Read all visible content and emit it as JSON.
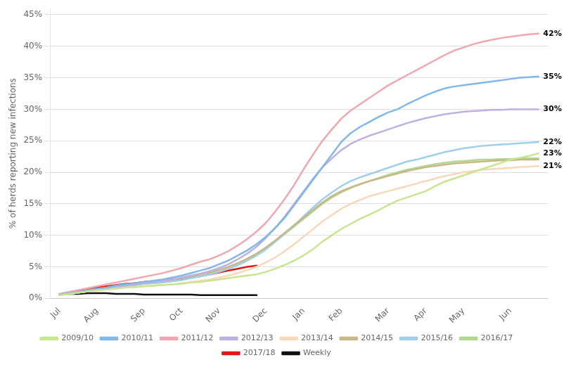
{
  "chart_data": {
    "type": "line",
    "y_label": "% of herds reporting new infections",
    "xlim": [
      -1,
      52
    ],
    "xticks": [
      {
        "value": 0,
        "label": "Jul"
      },
      {
        "value": 4,
        "label": "Aug"
      },
      {
        "value": 9,
        "label": "Sep"
      },
      {
        "value": 13,
        "label": "Oct"
      },
      {
        "value": 17,
        "label": "Nov"
      },
      {
        "value": 22,
        "label": "Dec"
      },
      {
        "value": 26,
        "label": "Jan"
      },
      {
        "value": 30,
        "label": "Feb"
      },
      {
        "value": 35,
        "label": "Mar"
      },
      {
        "value": 39,
        "label": "Apr"
      },
      {
        "value": 43,
        "label": "May"
      },
      {
        "value": 48,
        "label": "Jun"
      }
    ],
    "ylim": [
      0,
      0.46
    ],
    "yticks": [
      {
        "value": 0.0,
        "label": "0%"
      },
      {
        "value": 0.05,
        "label": "5%"
      },
      {
        "value": 0.1,
        "label": "10%"
      },
      {
        "value": 0.15,
        "label": "15%"
      },
      {
        "value": 0.2,
        "label": "20%"
      },
      {
        "value": 0.25,
        "label": "25%"
      },
      {
        "value": 0.3,
        "label": "30%"
      },
      {
        "value": 0.35,
        "label": "35%"
      },
      {
        "value": 0.4,
        "label": "40%"
      },
      {
        "value": 0.45,
        "label": "45%"
      }
    ],
    "grid": "y",
    "legend": "bottom",
    "annotations": [
      {
        "text": "42%",
        "x": 51.5,
        "y": 0.42
      },
      {
        "text": "35%",
        "x": 51.5,
        "y": 0.352
      },
      {
        "text": "30%",
        "x": 51.5,
        "y": 0.3
      },
      {
        "text": "23%",
        "x": 51.5,
        "y": 0.23
      },
      {
        "text": "22%",
        "x": 51.5,
        "y": 0.248
      },
      {
        "text": "21%",
        "x": 51.5,
        "y": 0.21
      }
    ],
    "series": [
      {
        "name": "2009/10",
        "color": "#c8e690",
        "x": [
          0,
          1,
          2,
          3,
          4,
          5,
          6,
          7,
          8,
          9,
          10,
          11,
          12,
          13,
          14,
          15,
          16,
          17,
          18,
          19,
          20,
          21,
          22,
          23,
          24,
          25,
          26,
          27,
          28,
          29,
          30,
          31,
          32,
          33,
          34,
          35,
          36,
          37,
          38,
          39,
          40,
          41,
          42,
          43,
          44,
          45,
          46,
          47,
          48,
          49,
          50,
          51
        ],
        "values": [
          0.005,
          0.007,
          0.009,
          0.011,
          0.013,
          0.014,
          0.016,
          0.017,
          0.018,
          0.019,
          0.02,
          0.021,
          0.022,
          0.023,
          0.025,
          0.026,
          0.028,
          0.03,
          0.032,
          0.034,
          0.036,
          0.038,
          0.042,
          0.047,
          0.053,
          0.06,
          0.068,
          0.078,
          0.09,
          0.1,
          0.11,
          0.118,
          0.126,
          0.133,
          0.14,
          0.148,
          0.155,
          0.16,
          0.165,
          0.17,
          0.178,
          0.185,
          0.19,
          0.195,
          0.2,
          0.205,
          0.21,
          0.215,
          0.22,
          0.223,
          0.226,
          0.23
        ]
      },
      {
        "name": "2010/11",
        "color": "#80b8e8",
        "x": [
          0,
          1,
          2,
          3,
          4,
          5,
          6,
          7,
          8,
          9,
          10,
          11,
          12,
          13,
          14,
          15,
          16,
          17,
          18,
          19,
          20,
          21,
          22,
          23,
          24,
          25,
          26,
          27,
          28,
          29,
          30,
          31,
          32,
          33,
          34,
          35,
          36,
          37,
          38,
          39,
          40,
          41,
          42,
          43,
          44,
          45,
          46,
          47,
          48,
          49,
          50,
          51
        ],
        "values": [
          0.006,
          0.008,
          0.01,
          0.013,
          0.015,
          0.017,
          0.02,
          0.022,
          0.024,
          0.026,
          0.028,
          0.03,
          0.033,
          0.036,
          0.04,
          0.044,
          0.048,
          0.054,
          0.06,
          0.068,
          0.076,
          0.086,
          0.098,
          0.112,
          0.128,
          0.148,
          0.168,
          0.188,
          0.208,
          0.228,
          0.248,
          0.262,
          0.272,
          0.28,
          0.288,
          0.295,
          0.3,
          0.308,
          0.315,
          0.322,
          0.328,
          0.333,
          0.336,
          0.338,
          0.34,
          0.342,
          0.344,
          0.346,
          0.348,
          0.35,
          0.351,
          0.352
        ]
      },
      {
        "name": "2011/12",
        "color": "#f0a8b0",
        "x": [
          0,
          1,
          2,
          3,
          4,
          5,
          6,
          7,
          8,
          9,
          10,
          11,
          12,
          13,
          14,
          15,
          16,
          17,
          18,
          19,
          20,
          21,
          22,
          23,
          24,
          25,
          26,
          27,
          28,
          29,
          30,
          31,
          32,
          33,
          34,
          35,
          36,
          37,
          38,
          39,
          40,
          41,
          42,
          43,
          44,
          45,
          46,
          47,
          48,
          49,
          50,
          51
        ],
        "values": [
          0.007,
          0.01,
          0.013,
          0.016,
          0.019,
          0.022,
          0.025,
          0.028,
          0.031,
          0.034,
          0.037,
          0.04,
          0.044,
          0.048,
          0.053,
          0.058,
          0.062,
          0.068,
          0.075,
          0.084,
          0.094,
          0.106,
          0.12,
          0.138,
          0.158,
          0.18,
          0.205,
          0.228,
          0.25,
          0.268,
          0.285,
          0.298,
          0.308,
          0.318,
          0.328,
          0.338,
          0.346,
          0.354,
          0.362,
          0.37,
          0.378,
          0.386,
          0.393,
          0.398,
          0.403,
          0.407,
          0.41,
          0.413,
          0.415,
          0.417,
          0.419,
          0.42
        ]
      },
      {
        "name": "2012/13",
        "color": "#c0b0e0",
        "x": [
          0,
          1,
          2,
          3,
          4,
          5,
          6,
          7,
          8,
          9,
          10,
          11,
          12,
          13,
          14,
          15,
          16,
          17,
          18,
          19,
          20,
          21,
          22,
          23,
          24,
          25,
          26,
          27,
          28,
          29,
          30,
          31,
          32,
          33,
          34,
          35,
          36,
          37,
          38,
          39,
          40,
          41,
          42,
          43,
          44,
          45,
          46,
          47,
          48,
          49,
          50,
          51
        ],
        "values": [
          0.006,
          0.008,
          0.01,
          0.012,
          0.014,
          0.016,
          0.018,
          0.02,
          0.022,
          0.024,
          0.026,
          0.028,
          0.03,
          0.033,
          0.036,
          0.039,
          0.043,
          0.048,
          0.054,
          0.062,
          0.071,
          0.082,
          0.096,
          0.112,
          0.13,
          0.15,
          0.17,
          0.19,
          0.208,
          0.222,
          0.235,
          0.245,
          0.252,
          0.258,
          0.263,
          0.268,
          0.273,
          0.278,
          0.282,
          0.286,
          0.289,
          0.292,
          0.294,
          0.296,
          0.297,
          0.298,
          0.299,
          0.299,
          0.3,
          0.3,
          0.3,
          0.3
        ]
      },
      {
        "name": "2013/14",
        "color": "#f8d8b8",
        "x": [
          0,
          1,
          2,
          3,
          4,
          5,
          6,
          7,
          8,
          9,
          10,
          11,
          12,
          13,
          14,
          15,
          16,
          17,
          18,
          19,
          20,
          21,
          22,
          23,
          24,
          25,
          26,
          27,
          28,
          29,
          30,
          31,
          32,
          33,
          34,
          35,
          36,
          37,
          38,
          39,
          40,
          41,
          42,
          43,
          44,
          45,
          46,
          47,
          48,
          49,
          50,
          51
        ],
        "values": [
          0.005,
          0.007,
          0.009,
          0.011,
          0.012,
          0.014,
          0.015,
          0.017,
          0.018,
          0.019,
          0.02,
          0.021,
          0.022,
          0.024,
          0.026,
          0.028,
          0.03,
          0.033,
          0.036,
          0.04,
          0.045,
          0.05,
          0.057,
          0.065,
          0.075,
          0.086,
          0.098,
          0.11,
          0.122,
          0.132,
          0.142,
          0.15,
          0.156,
          0.162,
          0.166,
          0.17,
          0.174,
          0.178,
          0.182,
          0.186,
          0.19,
          0.194,
          0.197,
          0.2,
          0.202,
          0.204,
          0.205,
          0.206,
          0.207,
          0.208,
          0.209,
          0.21
        ]
      },
      {
        "name": "2014/15",
        "color": "#c8b888",
        "x": [
          0,
          1,
          2,
          3,
          4,
          5,
          6,
          7,
          8,
          9,
          10,
          11,
          12,
          13,
          14,
          15,
          16,
          17,
          18,
          19,
          20,
          21,
          22,
          23,
          24,
          25,
          26,
          27,
          28,
          29,
          30,
          31,
          32,
          33,
          34,
          35,
          36,
          37,
          38,
          39,
          40,
          41,
          42,
          43,
          44,
          45,
          46,
          47,
          48,
          49,
          50,
          51
        ],
        "values": [
          0.006,
          0.008,
          0.01,
          0.012,
          0.014,
          0.016,
          0.018,
          0.02,
          0.022,
          0.024,
          0.026,
          0.028,
          0.03,
          0.032,
          0.035,
          0.038,
          0.041,
          0.045,
          0.05,
          0.056,
          0.063,
          0.071,
          0.081,
          0.092,
          0.104,
          0.116,
          0.128,
          0.14,
          0.152,
          0.162,
          0.17,
          0.176,
          0.181,
          0.186,
          0.19,
          0.194,
          0.198,
          0.202,
          0.205,
          0.208,
          0.21,
          0.212,
          0.214,
          0.215,
          0.216,
          0.217,
          0.218,
          0.219,
          0.219,
          0.22,
          0.22,
          0.22
        ]
      },
      {
        "name": "2015/16",
        "color": "#a0d0e8",
        "x": [
          0,
          1,
          2,
          3,
          4,
          5,
          6,
          7,
          8,
          9,
          10,
          11,
          12,
          13,
          14,
          15,
          16,
          17,
          18,
          19,
          20,
          21,
          22,
          23,
          24,
          25,
          26,
          27,
          28,
          29,
          30,
          31,
          32,
          33,
          34,
          35,
          36,
          37,
          38,
          39,
          40,
          41,
          42,
          43,
          44,
          45,
          46,
          47,
          48,
          49,
          50,
          51
        ],
        "values": [
          0.005,
          0.007,
          0.009,
          0.011,
          0.013,
          0.015,
          0.017,
          0.019,
          0.021,
          0.023,
          0.024,
          0.025,
          0.027,
          0.029,
          0.032,
          0.035,
          0.038,
          0.042,
          0.047,
          0.053,
          0.06,
          0.068,
          0.078,
          0.09,
          0.103,
          0.116,
          0.13,
          0.144,
          0.157,
          0.168,
          0.178,
          0.186,
          0.192,
          0.197,
          0.202,
          0.207,
          0.212,
          0.217,
          0.22,
          0.224,
          0.228,
          0.232,
          0.235,
          0.238,
          0.24,
          0.242,
          0.243,
          0.244,
          0.245,
          0.246,
          0.247,
          0.248
        ]
      },
      {
        "name": "2016/17",
        "color": "#b0d890",
        "x": [
          0,
          1,
          2,
          3,
          4,
          5,
          6,
          7,
          8,
          9,
          10,
          11,
          12,
          13,
          14,
          15,
          16,
          17,
          18,
          19,
          20,
          21,
          22,
          23,
          24,
          25,
          26,
          27,
          28,
          29,
          30,
          31,
          32,
          33,
          34,
          35,
          36,
          37,
          38,
          39,
          40,
          41,
          42,
          43,
          44,
          45,
          46,
          47,
          48,
          49,
          50,
          51
        ],
        "values": [
          0.005,
          0.007,
          0.009,
          0.011,
          0.013,
          0.015,
          0.017,
          0.019,
          0.021,
          0.023,
          0.024,
          0.025,
          0.027,
          0.029,
          0.032,
          0.035,
          0.038,
          0.042,
          0.047,
          0.053,
          0.06,
          0.068,
          0.078,
          0.09,
          0.102,
          0.114,
          0.126,
          0.138,
          0.15,
          0.16,
          0.168,
          0.175,
          0.181,
          0.186,
          0.191,
          0.196,
          0.2,
          0.204,
          0.207,
          0.21,
          0.213,
          0.215,
          0.217,
          0.218,
          0.219,
          0.22,
          0.22,
          0.221,
          0.221,
          0.222,
          0.222,
          0.222
        ]
      },
      {
        "name": "2017/18",
        "color": "#e01818",
        "x": [
          0,
          1,
          2,
          3,
          4,
          5,
          6,
          7,
          8,
          9,
          10,
          11,
          12,
          13,
          14,
          15,
          16,
          17,
          18,
          19,
          20,
          21
        ],
        "values": [
          0.006,
          0.009,
          0.012,
          0.015,
          0.017,
          0.019,
          0.021,
          0.023,
          0.024,
          0.026,
          0.027,
          0.028,
          0.03,
          0.031,
          0.033,
          0.035,
          0.038,
          0.041,
          0.044,
          0.047,
          0.05,
          0.052
        ]
      },
      {
        "name": "Weekly",
        "color": "#101010",
        "x": [
          0,
          1,
          2,
          3,
          4,
          5,
          6,
          7,
          8,
          9,
          10,
          11,
          12,
          13,
          14,
          15,
          16,
          17,
          18,
          19,
          20,
          21
        ],
        "values": [
          0.006,
          0.007,
          0.007,
          0.008,
          0.008,
          0.008,
          0.007,
          0.007,
          0.007,
          0.006,
          0.006,
          0.006,
          0.006,
          0.006,
          0.006,
          0.005,
          0.005,
          0.005,
          0.005,
          0.005,
          0.005,
          0.005
        ]
      }
    ]
  }
}
